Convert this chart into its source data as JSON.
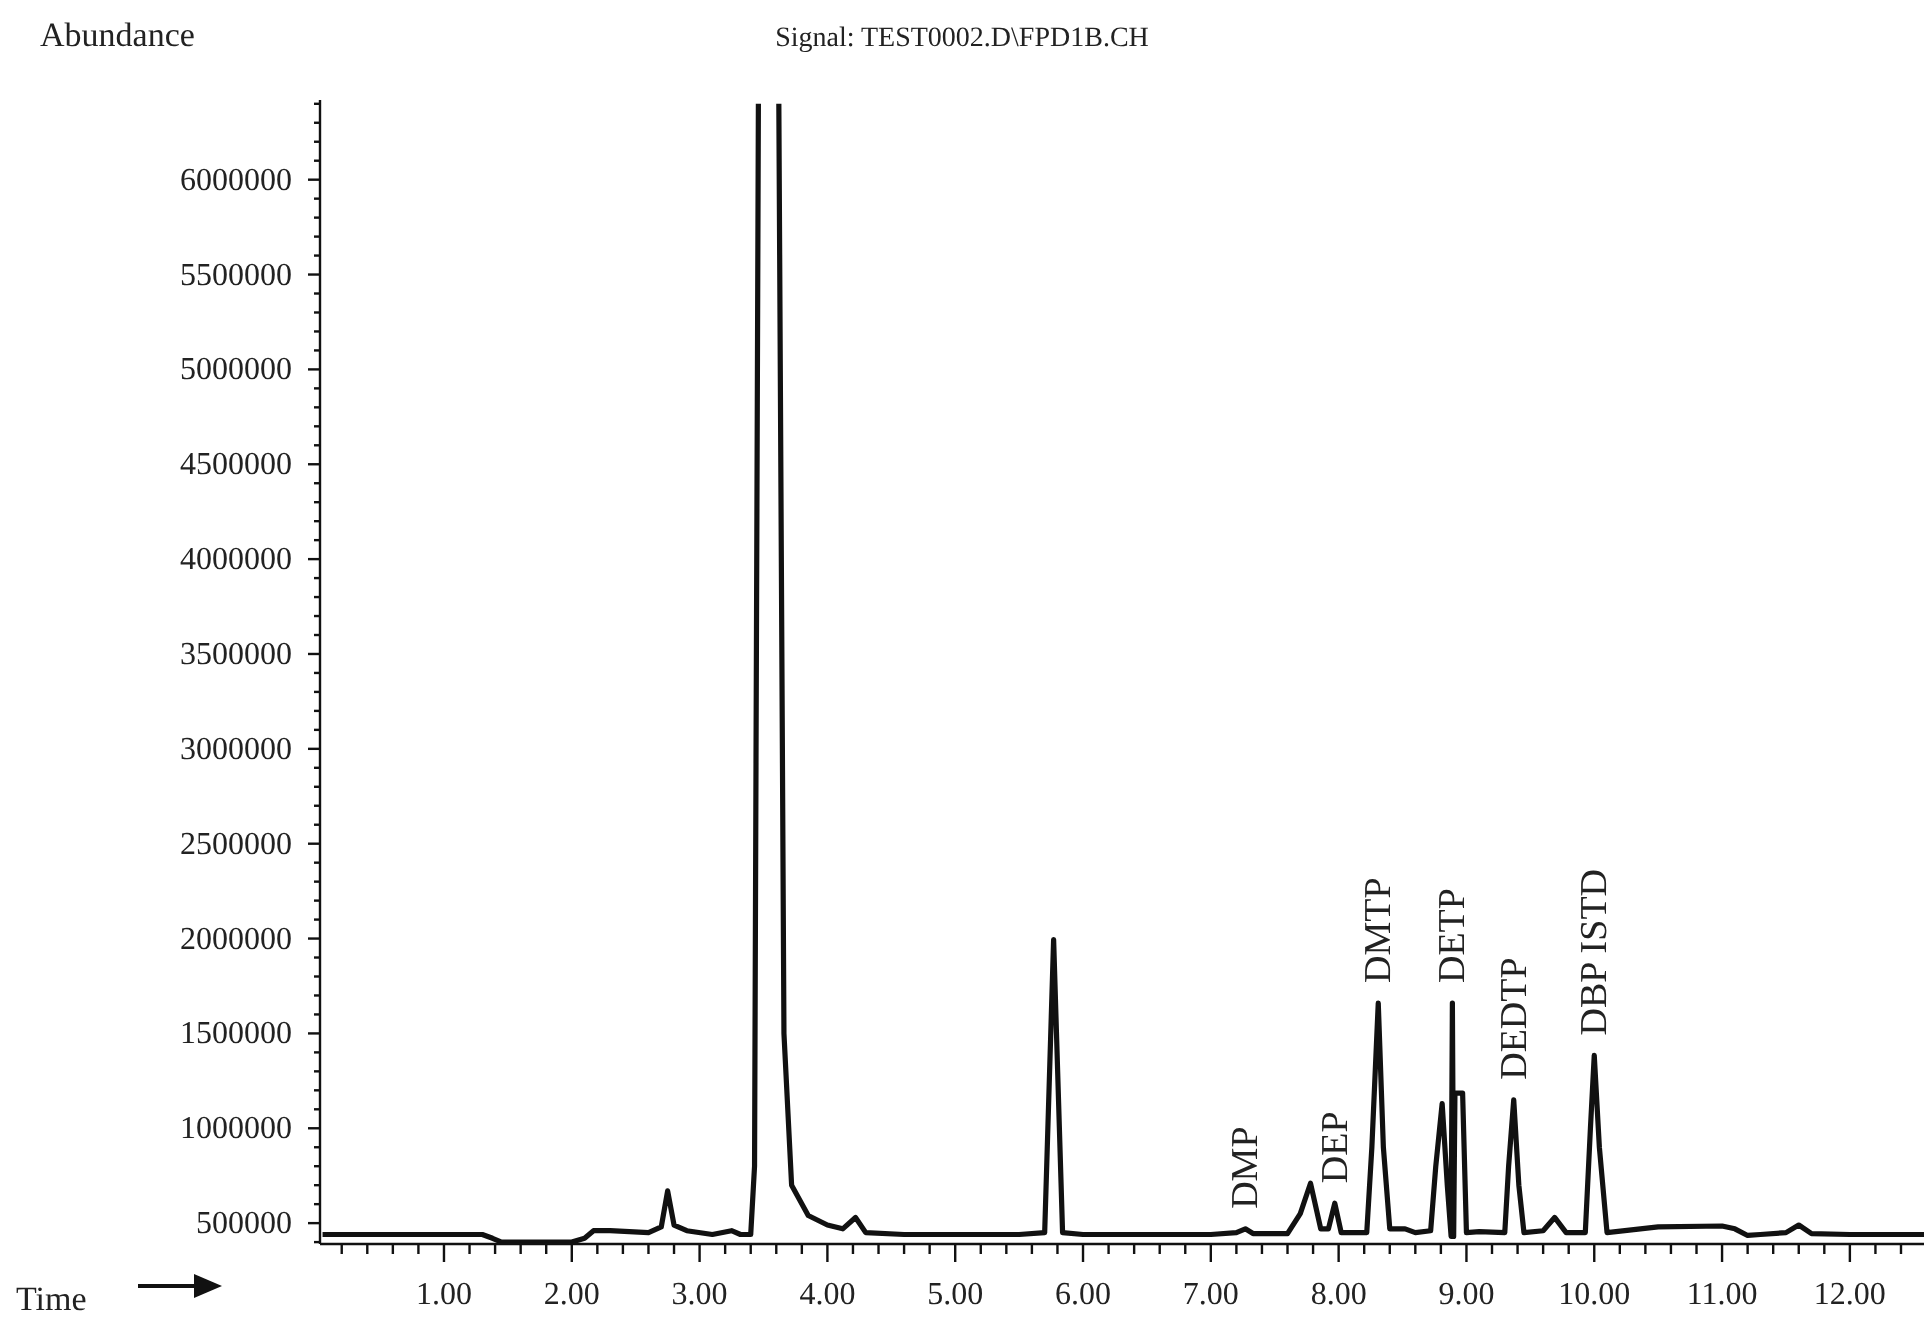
{
  "chart_data": {
    "type": "line",
    "title": "Signal: TEST0002.D\\FPD1B.CH",
    "ylabel": "Abundance",
    "xlabel": "Time",
    "x": [
      0.05,
      0.5,
      1.0,
      1.3,
      1.38,
      1.45,
      1.7,
      2.0,
      2.1,
      2.17,
      2.3,
      2.6,
      2.7,
      2.75,
      2.8,
      2.9,
      3.1,
      3.25,
      3.32,
      3.4,
      3.43,
      3.46,
      3.47,
      3.61,
      3.62,
      3.66,
      3.72,
      3.85,
      4.0,
      4.12,
      4.22,
      4.3,
      4.6,
      5.0,
      5.5,
      5.7,
      5.77,
      5.84,
      6.0,
      6.5,
      7.0,
      7.2,
      7.27,
      7.33,
      7.6,
      7.7,
      7.78,
      7.86,
      7.92,
      7.97,
      8.02,
      8.22,
      8.26,
      8.31,
      8.35,
      8.4,
      8.52,
      8.6,
      8.72,
      8.76,
      8.81,
      8.85,
      8.88,
      8.89,
      8.9,
      8.91,
      8.97,
      9.0,
      9.1,
      9.3,
      9.33,
      9.37,
      9.41,
      9.45,
      9.6,
      9.69,
      9.78,
      9.93,
      9.97,
      10.0,
      10.04,
      10.1,
      10.5,
      11.0,
      11.1,
      11.2,
      11.3,
      11.5,
      11.6,
      11.7,
      12.0,
      12.58
    ],
    "series": [
      {
        "color": "#111111",
        "values": [
          440000,
          440000,
          440000,
          440000,
          420000,
          400000,
          400000,
          400000,
          420000,
          460000,
          460000,
          450000,
          480000,
          670000,
          490000,
          460000,
          440000,
          460000,
          440000,
          440000,
          800000,
          6400000,
          null,
          null,
          6400000,
          1500000,
          700000,
          540000,
          490000,
          470000,
          530000,
          450000,
          440000,
          440000,
          440000,
          450000,
          1995000,
          450000,
          440000,
          440000,
          440000,
          450000,
          470000,
          445000,
          445000,
          550000,
          710000,
          470000,
          470000,
          605000,
          450000,
          450000,
          900000,
          1660000,
          900000,
          470000,
          470000,
          450000,
          460000,
          800000,
          1130000,
          700000,
          430000,
          1660000,
          430000,
          1185000,
          1185000,
          450000,
          455000,
          450000,
          800000,
          1150000,
          700000,
          450000,
          460000,
          530000,
          450000,
          450000,
          1000000,
          1384000,
          900000,
          450000,
          480000,
          485000,
          470000,
          435000,
          440000,
          450000,
          490000,
          445000,
          440000,
          440000
        ]
      }
    ],
    "annotations": [
      {
        "text": "DMP",
        "x": 7.27,
        "y": 470000
      },
      {
        "text": "DEP",
        "x": 7.97,
        "y": 605000
      },
      {
        "text": "DMTP",
        "x": 8.31,
        "y": 1660000
      },
      {
        "text": "DETP",
        "x": 8.89,
        "y": 1660000
      },
      {
        "text": "DEDTP",
        "x": 9.37,
        "y": 1150000
      },
      {
        "text": "DBP ISTD",
        "x": 10.0,
        "y": 1384000
      }
    ],
    "xlim": [
      0.03,
      12.58
    ],
    "ylim": [
      390000,
      6420000
    ],
    "xticks": [
      {
        "value": 0.2,
        "label": null
      },
      {
        "value": 0.4,
        "label": null
      },
      {
        "value": 0.6,
        "label": null
      },
      {
        "value": 0.8,
        "label": null
      },
      {
        "value": 1,
        "label": "1.00"
      },
      {
        "value": 1.2,
        "label": null
      },
      {
        "value": 1.4,
        "label": null
      },
      {
        "value": 1.6,
        "label": null
      },
      {
        "value": 1.8,
        "label": null
      },
      {
        "value": 2,
        "label": "2.00"
      },
      {
        "value": 2.2,
        "label": null
      },
      {
        "value": 2.4,
        "label": null
      },
      {
        "value": 2.6,
        "label": null
      },
      {
        "value": 2.8,
        "label": null
      },
      {
        "value": 3,
        "label": "3.00"
      },
      {
        "value": 3.2,
        "label": null
      },
      {
        "value": 3.4,
        "label": null
      },
      {
        "value": 3.6,
        "label": null
      },
      {
        "value": 3.8,
        "label": null
      },
      {
        "value": 4,
        "label": "4.00"
      },
      {
        "value": 4.2,
        "label": null
      },
      {
        "value": 4.4,
        "label": null
      },
      {
        "value": 4.6,
        "label": null
      },
      {
        "value": 4.8,
        "label": null
      },
      {
        "value": 5,
        "label": "5.00"
      },
      {
        "value": 5.2,
        "label": null
      },
      {
        "value": 5.4,
        "label": null
      },
      {
        "value": 5.6,
        "label": null
      },
      {
        "value": 5.8,
        "label": null
      },
      {
        "value": 6,
        "label": "6.00"
      },
      {
        "value": 6.2,
        "label": null
      },
      {
        "value": 6.4,
        "label": null
      },
      {
        "value": 6.6,
        "label": null
      },
      {
        "value": 6.8,
        "label": null
      },
      {
        "value": 7,
        "label": "7.00"
      },
      {
        "value": 7.2,
        "label": null
      },
      {
        "value": 7.4,
        "label": null
      },
      {
        "value": 7.6,
        "label": null
      },
      {
        "value": 7.8,
        "label": null
      },
      {
        "value": 8,
        "label": "8.00"
      },
      {
        "value": 8.2,
        "label": null
      },
      {
        "value": 8.4,
        "label": null
      },
      {
        "value": 8.6,
        "label": null
      },
      {
        "value": 8.8,
        "label": null
      },
      {
        "value": 9,
        "label": "9.00"
      },
      {
        "value": 9.2,
        "label": null
      },
      {
        "value": 9.4,
        "label": null
      },
      {
        "value": 9.6,
        "label": null
      },
      {
        "value": 9.8,
        "label": null
      },
      {
        "value": 10,
        "label": "10.00"
      },
      {
        "value": 10.2,
        "label": null
      },
      {
        "value": 10.4,
        "label": null
      },
      {
        "value": 10.6,
        "label": null
      },
      {
        "value": 10.8,
        "label": null
      },
      {
        "value": 11,
        "label": "11.00"
      },
      {
        "value": 11.2,
        "label": null
      },
      {
        "value": 11.4,
        "label": null
      },
      {
        "value": 11.6,
        "label": null
      },
      {
        "value": 11.8,
        "label": null
      },
      {
        "value": 12,
        "label": "12.00"
      },
      {
        "value": 12.2,
        "label": null
      },
      {
        "value": 12.4,
        "label": null
      }
    ],
    "yticks": [
      {
        "value": 400000,
        "label": null
      },
      500000,
      {
        "value": 600000,
        "label": null
      },
      {
        "value": 700000,
        "label": null
      },
      {
        "value": 800000,
        "label": null
      },
      {
        "value": 900000,
        "label": null
      },
      1000000,
      {
        "value": 1100000,
        "label": null
      },
      {
        "value": 1200000,
        "label": null
      },
      {
        "value": 1300000,
        "label": null
      },
      {
        "value": 1400000,
        "label": null
      },
      1500000,
      {
        "value": 1600000,
        "label": null
      },
      {
        "value": 1700000,
        "label": null
      },
      {
        "value": 1800000,
        "label": null
      },
      {
        "value": 1900000,
        "label": null
      },
      2000000,
      {
        "value": 2100000,
        "label": null
      },
      {
        "value": 2200000,
        "label": null
      },
      {
        "value": 2300000,
        "label": null
      },
      {
        "value": 2400000,
        "label": null
      },
      2500000,
      {
        "value": 2600000,
        "label": null
      },
      {
        "value": 2700000,
        "label": null
      },
      {
        "value": 2800000,
        "label": null
      },
      {
        "value": 2900000,
        "label": null
      },
      3000000,
      {
        "value": 3100000,
        "label": null
      },
      {
        "value": 3200000,
        "label": null
      },
      {
        "value": 3300000,
        "label": null
      },
      {
        "value": 3400000,
        "label": null
      },
      3500000,
      {
        "value": 3600000,
        "label": null
      },
      {
        "value": 3700000,
        "label": null
      },
      {
        "value": 3800000,
        "label": null
      },
      {
        "value": 3900000,
        "label": null
      },
      4000000,
      {
        "value": 4100000,
        "label": null
      },
      {
        "value": 4200000,
        "label": null
      },
      {
        "value": 4300000,
        "label": null
      },
      {
        "value": 4400000,
        "label": null
      },
      4500000,
      {
        "value": 4600000,
        "label": null
      },
      {
        "value": 4700000,
        "label": null
      },
      {
        "value": 4800000,
        "label": null
      },
      {
        "value": 4900000,
        "label": null
      },
      5000000,
      {
        "value": 5100000,
        "label": null
      },
      {
        "value": 5200000,
        "label": null
      },
      {
        "value": 5300000,
        "label": null
      },
      {
        "value": 5400000,
        "label": null
      },
      5500000,
      {
        "value": 5600000,
        "label": null
      },
      {
        "value": 5700000,
        "label": null
      },
      {
        "value": 5800000,
        "label": null
      },
      {
        "value": 5900000,
        "label": null
      },
      6000000,
      {
        "value": 6100000,
        "label": null
      },
      {
        "value": 6200000,
        "label": null
      },
      {
        "value": 6300000,
        "label": null
      },
      {
        "value": 6400000,
        "label": null
      }
    ],
    "grid": false,
    "legend": false,
    "marker": "none",
    "line_style": "solid"
  }
}
